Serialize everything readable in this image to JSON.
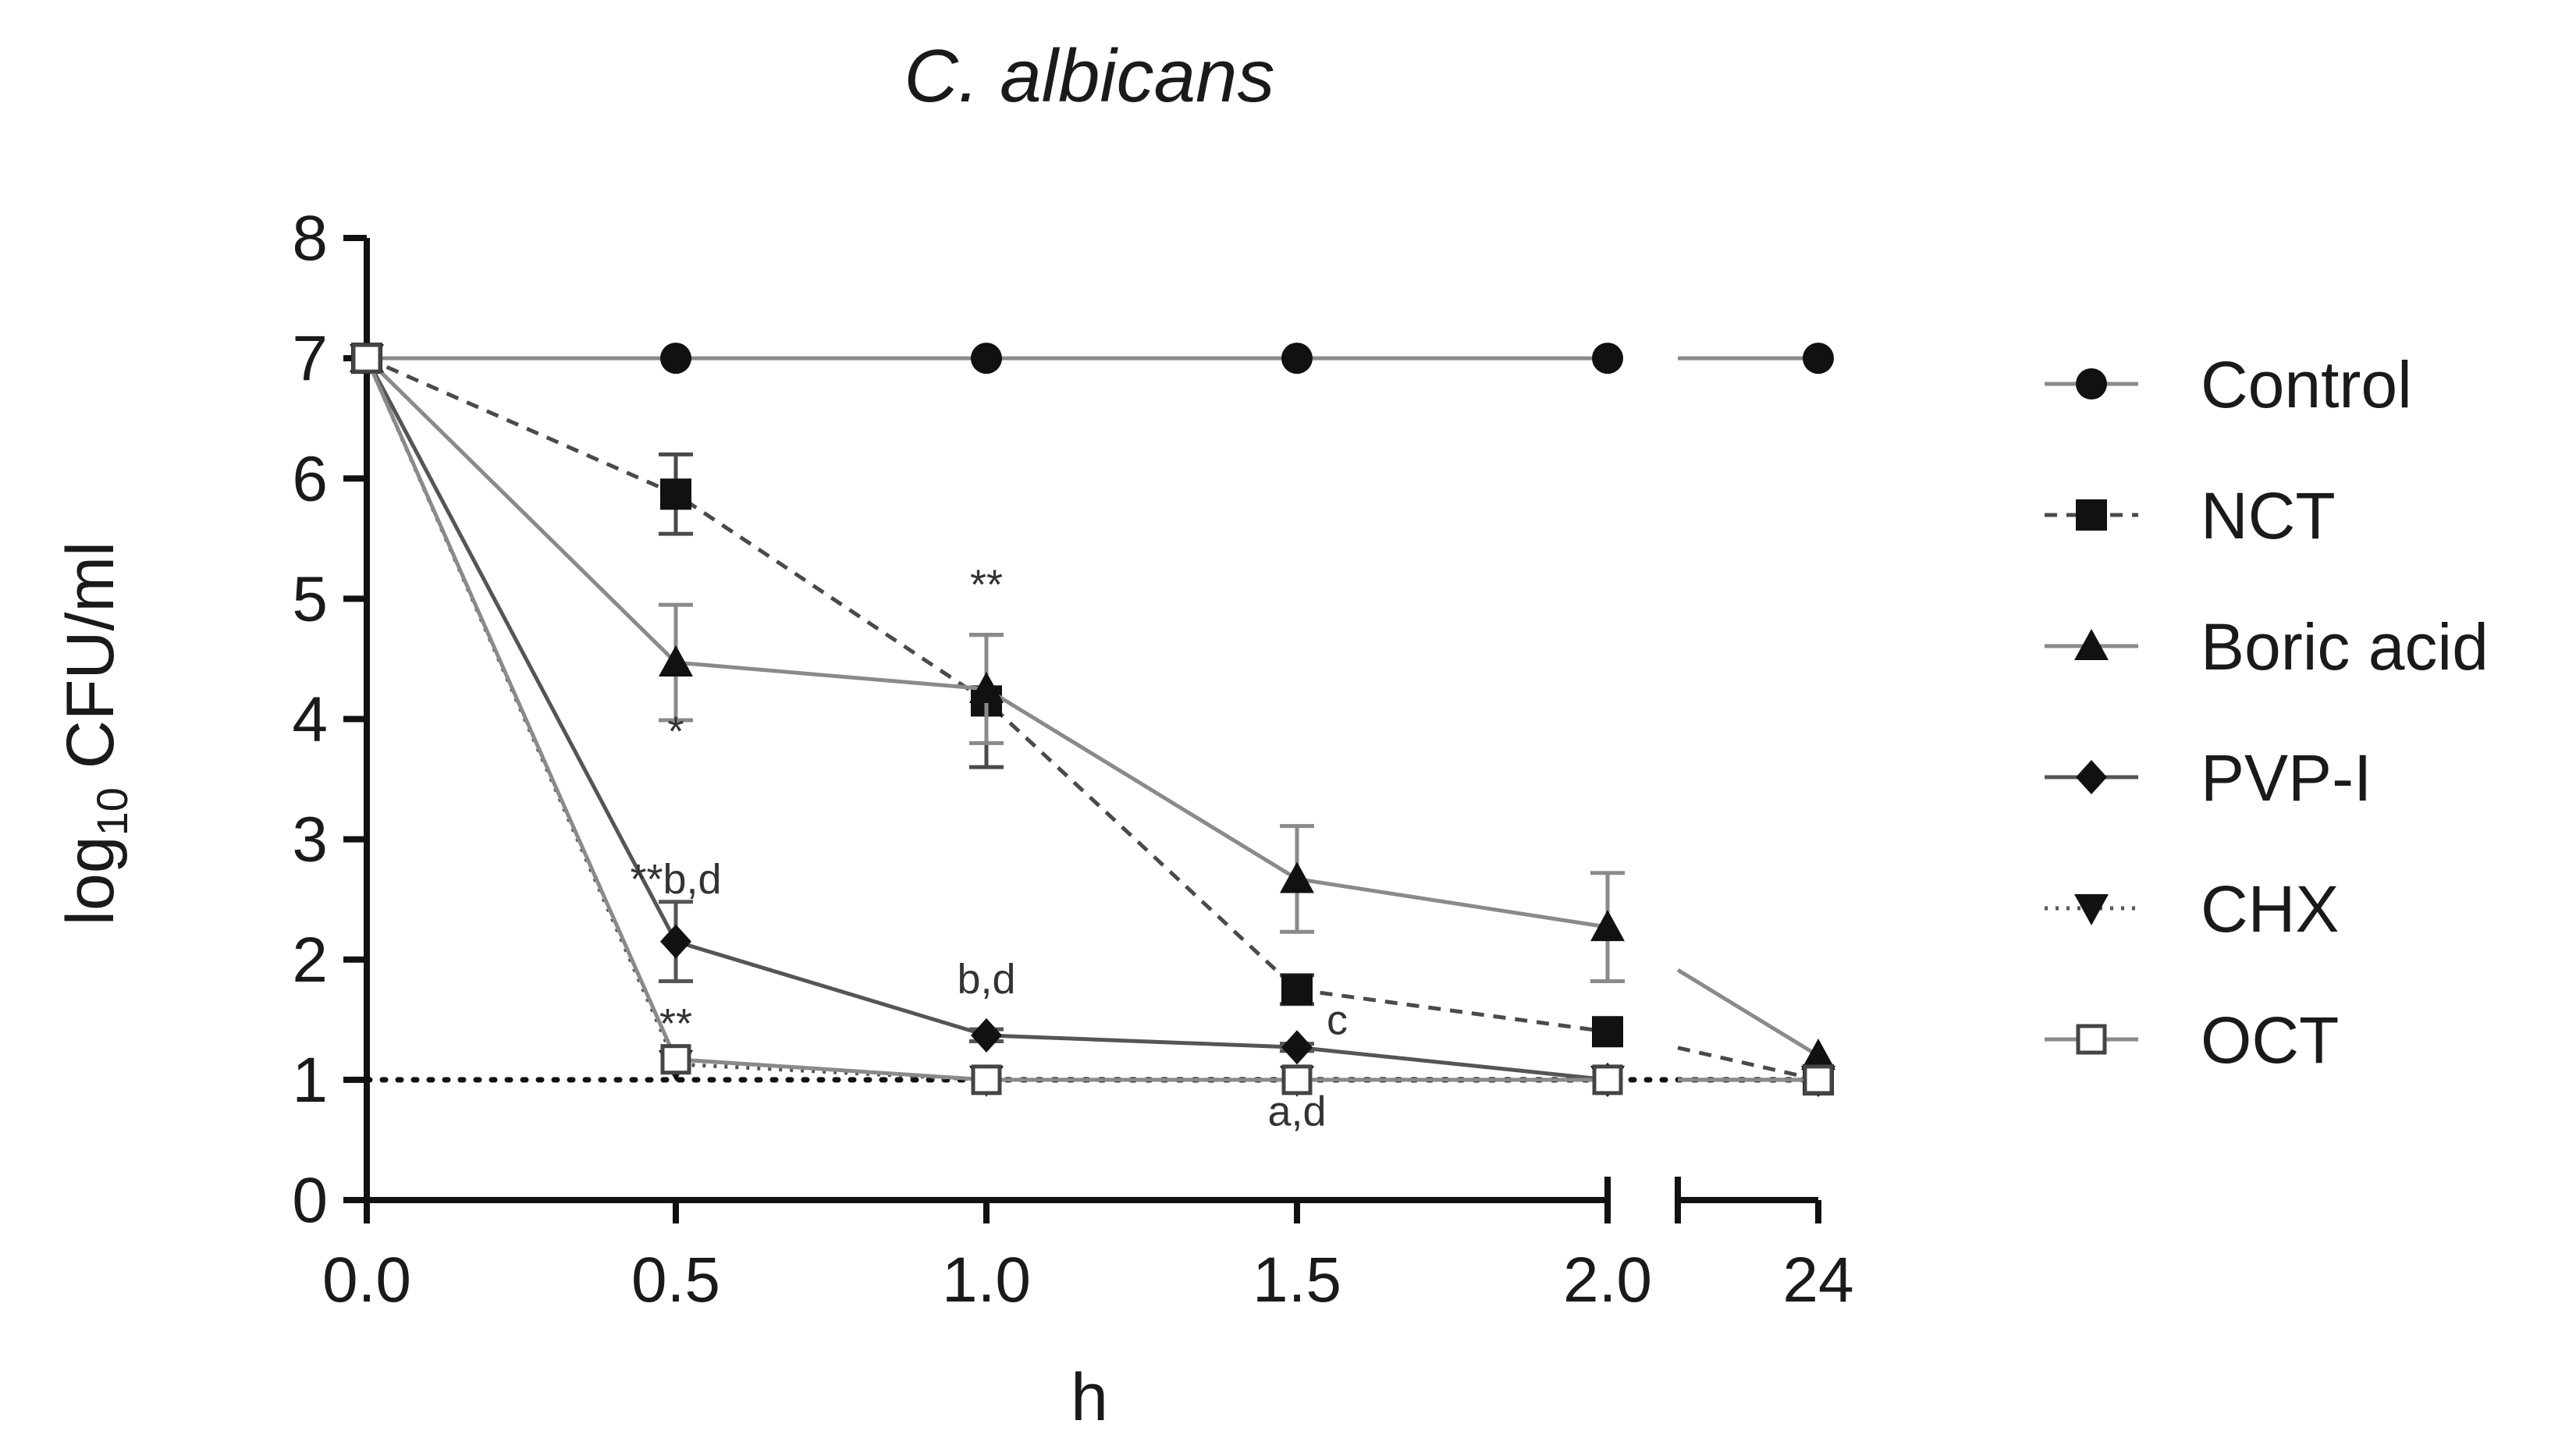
{
  "chart_data": {
    "type": "line",
    "title": "C. albicans",
    "xlabel": "h",
    "ylabel_main": "log",
    "ylabel_sub": "10",
    "ylabel_rest": " CFU/ml",
    "x_tick_labels": [
      "0.0",
      "0.5",
      "1.0",
      "1.5",
      "2.0",
      "24"
    ],
    "x_break": true,
    "ylim": [
      0,
      8
    ],
    "y_ticks": [
      0,
      1,
      2,
      3,
      4,
      5,
      6,
      7,
      8
    ],
    "detection_limit": 1,
    "grid": false,
    "legend_position": "right",
    "series": [
      {
        "name": "Control",
        "marker": "circle",
        "line": "solid",
        "color": "#8a8a8a",
        "values": [
          7,
          7,
          7,
          7,
          7,
          7
        ],
        "err": [
          0,
          0,
          0,
          0,
          0,
          0
        ]
      },
      {
        "name": "NCT",
        "marker": "square",
        "line": "dashed",
        "color": "#4a4a4a",
        "values": [
          7,
          5.87,
          4.15,
          1.75,
          1.4,
          1.0
        ],
        "err": [
          0,
          0.33,
          0.55,
          0.12,
          0,
          0
        ]
      },
      {
        "name": "Boric acid",
        "marker": "triangle-up",
        "line": "solid",
        "color": "#8a8a8a",
        "values": [
          7,
          4.47,
          4.25,
          2.67,
          2.27,
          1.2
        ],
        "err": [
          0,
          0.48,
          0.45,
          0.44,
          0.45,
          0
        ]
      },
      {
        "name": "PVP-I",
        "marker": "diamond",
        "line": "solid",
        "color": "#555555",
        "values": [
          7,
          2.15,
          1.37,
          1.27,
          1.0,
          1.0
        ],
        "err": [
          0,
          0.33,
          0.05,
          0.03,
          0,
          0
        ]
      },
      {
        "name": "CHX",
        "marker": "triangle-down",
        "line": "dotted",
        "color": "#555555",
        "values": [
          7,
          1.13,
          1.0,
          1.0,
          1.0,
          1.0
        ],
        "err": [
          0,
          0,
          0,
          0,
          0,
          0
        ]
      },
      {
        "name": "OCT",
        "marker": "open-square",
        "line": "solid",
        "color": "#8a8a8a",
        "values": [
          7,
          1.17,
          1.0,
          1.0,
          1.0,
          1.0
        ],
        "err": [
          0,
          0,
          0,
          0,
          0,
          0
        ]
      }
    ],
    "annotations": [
      {
        "text": "**",
        "x_index": 5,
        "y": 5.0
      },
      {
        "text": "*",
        "x_index": 1,
        "y": 3.78
      },
      {
        "text": "**b,d",
        "x_index": 1,
        "y": 2.55
      },
      {
        "text": "**",
        "x_index": 1,
        "y": 1.35
      },
      {
        "text": "b,d",
        "x_index": 2,
        "y": 1.72
      },
      {
        "text": "c",
        "x_index": 3,
        "y": 1.38
      },
      {
        "text": "a,d",
        "x_index": 3,
        "y": 0.62
      }
    ]
  }
}
